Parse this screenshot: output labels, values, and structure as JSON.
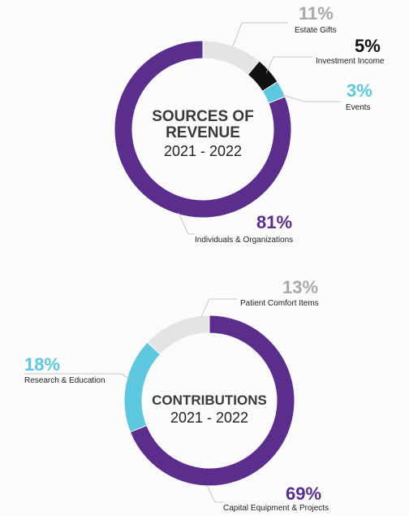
{
  "chart_data": [
    {
      "type": "pie",
      "title": "SOURCES OF REVENUE",
      "subtitle": "2021 - 2022",
      "slices": [
        {
          "label": "Estate Gifts",
          "value": 11,
          "value_label": "11%",
          "color": "#e4e4e4",
          "label_color": "#a9a9a9"
        },
        {
          "label": "Investment Income",
          "value": 5,
          "value_label": "5%",
          "color": "#111111",
          "label_color": "#111111"
        },
        {
          "label": "Events",
          "value": 3,
          "value_label": "3%",
          "color": "#5bc8e0",
          "label_color": "#5bc8e0"
        },
        {
          "label": "Individuals & Organizations",
          "value": 81,
          "value_label": "81%",
          "color": "#5b2d8c",
          "label_color": "#5b2d8c"
        }
      ]
    },
    {
      "type": "pie",
      "title": "CONTRIBUTIONS",
      "subtitle": "2021 - 2022",
      "slices": [
        {
          "label": "Capital Equipment & Projects",
          "value": 69,
          "value_label": "69%",
          "color": "#5b2d8c",
          "label_color": "#5b2d8c"
        },
        {
          "label": "Research & Education",
          "value": 18,
          "value_label": "18%",
          "color": "#5bc8e0",
          "label_color": "#5bc8e0"
        },
        {
          "label": "Patient Comfort Items",
          "value": 13,
          "value_label": "13%",
          "color": "#e4e4e4",
          "label_color": "#a9a9a9"
        }
      ]
    }
  ]
}
